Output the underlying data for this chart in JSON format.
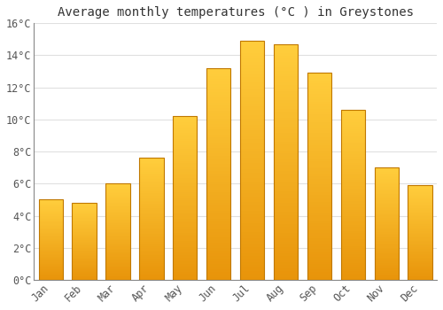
{
  "title": "Average monthly temperatures (°C ) in Greystones",
  "months": [
    "Jan",
    "Feb",
    "Mar",
    "Apr",
    "May",
    "Jun",
    "Jul",
    "Aug",
    "Sep",
    "Oct",
    "Nov",
    "Dec"
  ],
  "values": [
    5.0,
    4.8,
    6.0,
    7.6,
    10.2,
    13.2,
    14.9,
    14.7,
    12.9,
    10.6,
    7.0,
    5.9
  ],
  "bar_color_bottom": "#E8940A",
  "bar_color_top": "#FFCD3C",
  "bar_edge_color": "#C07800",
  "ylim": [
    0,
    16
  ],
  "yticks": [
    0,
    2,
    4,
    6,
    8,
    10,
    12,
    14,
    16
  ],
  "ytick_labels": [
    "0°C",
    "2°C",
    "4°C",
    "6°C",
    "8°C",
    "10°C",
    "12°C",
    "14°C",
    "16°C"
  ],
  "background_color": "#FFFFFF",
  "grid_color": "#E0E0E0",
  "title_fontsize": 10,
  "tick_fontsize": 8.5,
  "bar_width": 0.72
}
